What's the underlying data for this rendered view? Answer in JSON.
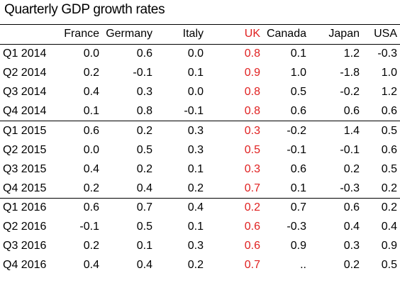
{
  "chart_data": {
    "type": "table",
    "title": "Quarterly GDP growth rates",
    "columns": [
      "",
      "France",
      "Germany",
      "Italy",
      "UK",
      "Canada",
      "Japan",
      "USA"
    ],
    "highlight_column": "UK",
    "highlight_color": "#e02020",
    "row_groups": [
      [
        {
          "label": "Q1 2014",
          "values": [
            "0.0",
            "0.6",
            "0.0",
            "0.8",
            "0.1",
            "1.2",
            "-0.3"
          ]
        },
        {
          "label": "Q2 2014",
          "values": [
            "0.2",
            "-0.1",
            "0.1",
            "0.9",
            "1.0",
            "-1.8",
            "1.0"
          ]
        },
        {
          "label": "Q3 2014",
          "values": [
            "0.4",
            "0.3",
            "0.0",
            "0.8",
            "0.5",
            "-0.2",
            "1.2"
          ]
        },
        {
          "label": "Q4 2014",
          "values": [
            "0.1",
            "0.8",
            "-0.1",
            "0.8",
            "0.6",
            "0.6",
            "0.6"
          ]
        }
      ],
      [
        {
          "label": "Q1 2015",
          "values": [
            "0.6",
            "0.2",
            "0.3",
            "0.3",
            "-0.2",
            "1.4",
            "0.5"
          ]
        },
        {
          "label": "Q2 2015",
          "values": [
            "0.0",
            "0.5",
            "0.3",
            "0.5",
            "-0.1",
            "-0.1",
            "0.6"
          ]
        },
        {
          "label": "Q3 2015",
          "values": [
            "0.4",
            "0.2",
            "0.1",
            "0.3",
            "0.6",
            "0.2",
            "0.5"
          ]
        },
        {
          "label": "Q4 2015",
          "values": [
            "0.2",
            "0.4",
            "0.2",
            "0.7",
            "0.1",
            "-0.3",
            "0.2"
          ]
        }
      ],
      [
        {
          "label": "Q1 2016",
          "values": [
            "0.6",
            "0.7",
            "0.4",
            "0.2",
            "0.7",
            "0.6",
            "0.2"
          ]
        },
        {
          "label": "Q2 2016",
          "values": [
            "-0.1",
            "0.5",
            "0.1",
            "0.6",
            "-0.3",
            "0.4",
            "0.4"
          ]
        },
        {
          "label": "Q3 2016",
          "values": [
            "0.2",
            "0.1",
            "0.3",
            "0.6",
            "0.9",
            "0.3",
            "0.9"
          ]
        },
        {
          "label": "Q4 2016",
          "values": [
            "0.4",
            "0.4",
            "0.2",
            "0.7",
            "..",
            "0.2",
            "0.5"
          ]
        }
      ]
    ]
  }
}
